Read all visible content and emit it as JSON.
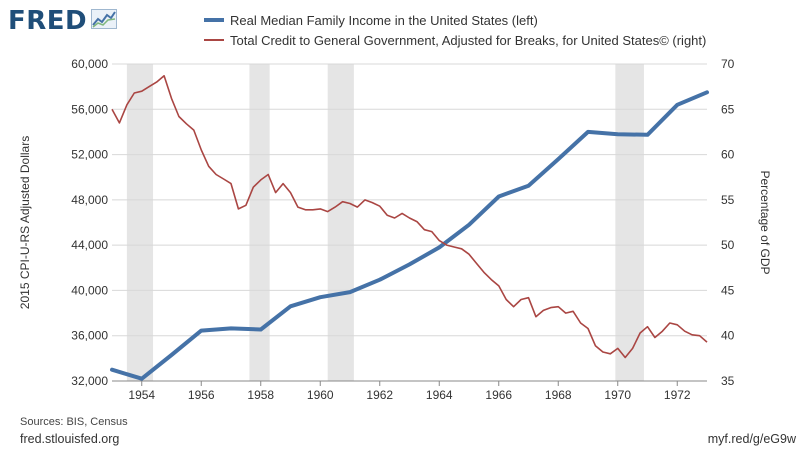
{
  "header": {
    "logo_text": "FRED",
    "logo_icon": "line-graph-icon"
  },
  "legend": [
    {
      "label": "Real Median Family Income in the United States (left)",
      "color": "#4572a7"
    },
    {
      "label": "Total Credit to General Government, Adjusted for Breaks, for United States© (right)",
      "color": "#aa4643"
    }
  ],
  "footer": {
    "sources": "Sources: BIS, Census",
    "site": "fred.stlouisfed.org",
    "short_link": "myf.red/g/eG9w"
  },
  "colors": {
    "income": "#4572a7",
    "credit": "#aa4643",
    "recession": "#e5e5e5",
    "grid": "#d8d8d8"
  },
  "chart_data": {
    "type": "line",
    "title": "",
    "x_tick_labels": [
      "1954",
      "1956",
      "1958",
      "1960",
      "1962",
      "1964",
      "1966",
      "1968",
      "1970",
      "1972"
    ],
    "xlim": [
      1953.0,
      1973.0
    ],
    "ylabel_left": "2015 CPI-U-RS Adjusted Dollars",
    "ylabel_right": "Percentage of GDP",
    "ylim_left": [
      32000,
      60000
    ],
    "ylim_right": [
      35,
      70
    ],
    "y_ticks_left": [
      "32,000",
      "36,000",
      "40,000",
      "44,000",
      "48,000",
      "52,000",
      "56,000",
      "60,000"
    ],
    "y_ticks_right": [
      "35",
      "40",
      "45",
      "50",
      "55",
      "60",
      "65",
      "70"
    ],
    "grid": true,
    "recessions": [
      [
        1953.5,
        1954.38
      ],
      [
        1957.62,
        1958.3
      ],
      [
        1960.25,
        1961.13
      ],
      [
        1969.92,
        1970.88
      ]
    ],
    "series": [
      {
        "name": "Real Median Family Income in the United States (left)",
        "axis": "left",
        "x": [
          1953,
          1954,
          1955,
          1956,
          1957,
          1958,
          1959,
          1960,
          1961,
          1962,
          1963,
          1964,
          1965,
          1966,
          1967,
          1968,
          1969,
          1970,
          1971,
          1972,
          1973
        ],
        "y": [
          33000,
          32200,
          34300,
          36450,
          36650,
          36550,
          38600,
          39400,
          39850,
          40950,
          42300,
          43800,
          45800,
          48300,
          49250,
          51600,
          54000,
          53800,
          53750,
          56400,
          57500
        ]
      },
      {
        "name": "Total Credit to General Government, Adjusted for Breaks, for United States© (right)",
        "axis": "right",
        "x": [
          1953.0,
          1953.25,
          1953.5,
          1953.75,
          1954.0,
          1954.25,
          1954.5,
          1954.75,
          1955.0,
          1955.25,
          1955.5,
          1955.75,
          1956.0,
          1956.25,
          1956.5,
          1956.75,
          1957.0,
          1957.25,
          1957.5,
          1957.75,
          1958.0,
          1958.25,
          1958.5,
          1958.75,
          1959.0,
          1959.25,
          1959.5,
          1959.75,
          1960.0,
          1960.25,
          1960.5,
          1960.75,
          1961.0,
          1961.25,
          1961.5,
          1961.75,
          1962.0,
          1962.25,
          1962.5,
          1962.75,
          1963.0,
          1963.25,
          1963.5,
          1963.75,
          1964.0,
          1964.25,
          1964.5,
          1964.75,
          1965.0,
          1965.25,
          1965.5,
          1965.75,
          1966.0,
          1966.25,
          1966.5,
          1966.75,
          1967.0,
          1967.25,
          1967.5,
          1967.75,
          1968.0,
          1968.25,
          1968.5,
          1968.75,
          1969.0,
          1969.25,
          1969.5,
          1969.75,
          1970.0,
          1970.25,
          1970.5,
          1970.75,
          1971.0,
          1971.25,
          1971.5,
          1971.75,
          1972.0,
          1972.25,
          1972.5,
          1972.75,
          1973.0
        ],
        "y": [
          65.0,
          63.5,
          65.5,
          66.8,
          67.0,
          67.5,
          68.0,
          68.7,
          66.2,
          64.2,
          63.4,
          62.7,
          60.5,
          58.7,
          57.8,
          57.3,
          56.8,
          54.0,
          54.4,
          56.4,
          57.2,
          57.8,
          55.8,
          56.8,
          55.8,
          54.2,
          53.9,
          53.9,
          54.0,
          53.7,
          54.2,
          54.8,
          54.6,
          54.2,
          55.0,
          54.7,
          54.3,
          53.3,
          53.0,
          53.5,
          53.0,
          52.6,
          51.7,
          51.5,
          50.5,
          50.0,
          49.8,
          49.6,
          49.0,
          48.0,
          47.0,
          46.2,
          45.5,
          44.0,
          43.2,
          44.0,
          44.2,
          42.1,
          42.8,
          43.1,
          43.2,
          42.5,
          42.7,
          41.4,
          40.8,
          38.9,
          38.2,
          38.0,
          38.6,
          37.6,
          38.6,
          40.3,
          41.0,
          39.8,
          40.5,
          41.4,
          41.2,
          40.5,
          40.1,
          40.0,
          39.3
        ]
      }
    ]
  }
}
